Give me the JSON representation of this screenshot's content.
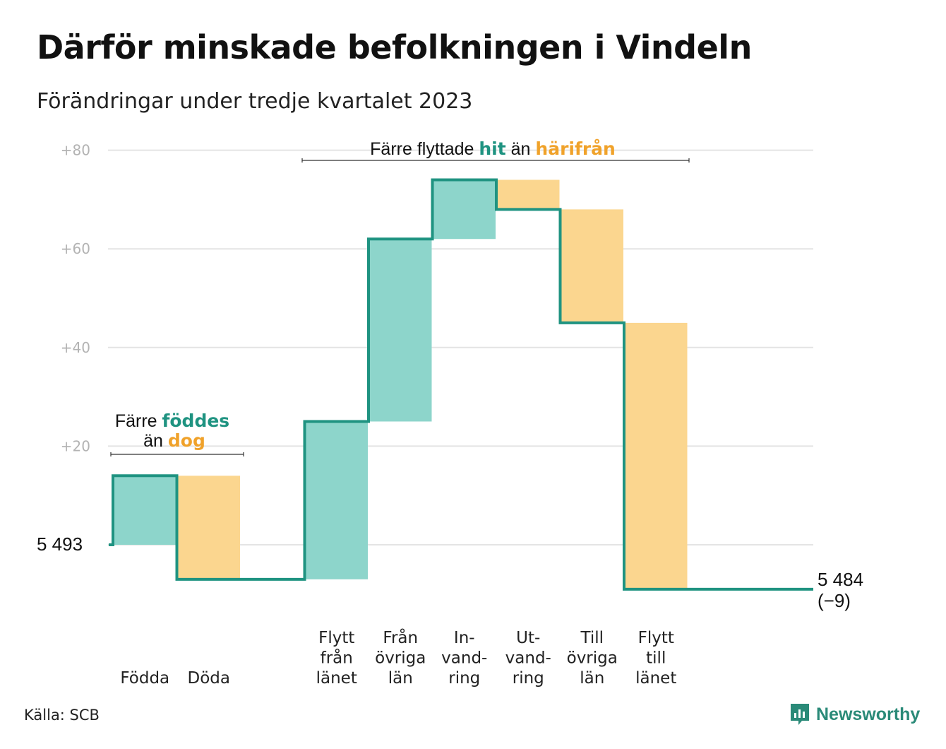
{
  "title": "Därför minskade befolkningen i Vindeln",
  "subtitle": "Förändringar under tredje kvartalet 2023",
  "source": "Källa: SCB",
  "logo": {
    "icon": "newsworthy-chat-bars-icon",
    "text": "Newsworthy"
  },
  "colors": {
    "increase_fill": "#8dd5cb",
    "decrease_fill": "#fbd68f",
    "line": "#1f9381",
    "teal_text": "#1f9381",
    "orange_text": "#f0a22a",
    "grid": "#e4e4e4",
    "tick_text": "#b3b3b3"
  },
  "chart_data": {
    "type": "waterfall",
    "start_label": "5  493",
    "end_label": {
      "value": "5 484",
      "change": "(−9)"
    },
    "y_ticks": [
      "+20",
      "+40",
      "+60",
      "+80"
    ],
    "y_tick_values": [
      20,
      40,
      60,
      80
    ],
    "ylim": [
      -20,
      84
    ],
    "grid": true,
    "series": [
      {
        "label_lines": [
          "Födda"
        ],
        "value": 14
      },
      {
        "label_lines": [
          "Döda"
        ],
        "value": -21
      },
      {
        "label_lines": [],
        "value": 0
      },
      {
        "label_lines": [
          "Flytt",
          "från",
          "länet"
        ],
        "value": 32
      },
      {
        "label_lines": [
          "Från",
          "övriga",
          "län"
        ],
        "value": 37
      },
      {
        "label_lines": [
          "In-",
          "vand-",
          "ring"
        ],
        "value": 12
      },
      {
        "label_lines": [
          "Ut-",
          "vand-",
          "ring"
        ],
        "value": -6
      },
      {
        "label_lines": [
          "Till",
          "övriga",
          "län"
        ],
        "value": -23
      },
      {
        "label_lines": [
          "Flytt",
          "till",
          "länet"
        ],
        "value": -54
      }
    ],
    "annotations": {
      "births": {
        "line1_plain": "Färre ",
        "line1_teal": "föddes",
        "line2_plain": "än ",
        "line2_orange": "dog"
      },
      "migration": {
        "plain1": "Färre flyttade ",
        "teal": "hit",
        "plain2": " än ",
        "orange": "härifrån"
      }
    }
  }
}
